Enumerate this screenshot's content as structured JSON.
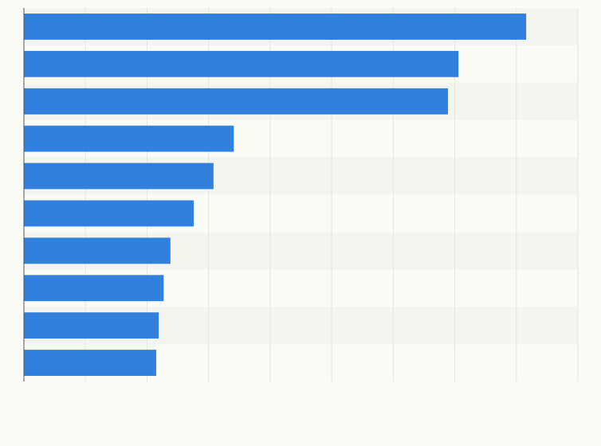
{
  "chart_data": {
    "type": "bar",
    "orientation": "horizontal",
    "categories": [
      null,
      null,
      null,
      null,
      null,
      null,
      null,
      null,
      null,
      null
    ],
    "values": [
      8.16,
      7.06,
      6.89,
      3.41,
      3.08,
      2.76,
      2.38,
      2.27,
      2.19,
      2.15
    ],
    "color": "#3180de",
    "xlim": [
      0,
      9
    ],
    "xticks": [
      0,
      1,
      2,
      3,
      4,
      5,
      6,
      7,
      8,
      9
    ],
    "grid": true
  }
}
